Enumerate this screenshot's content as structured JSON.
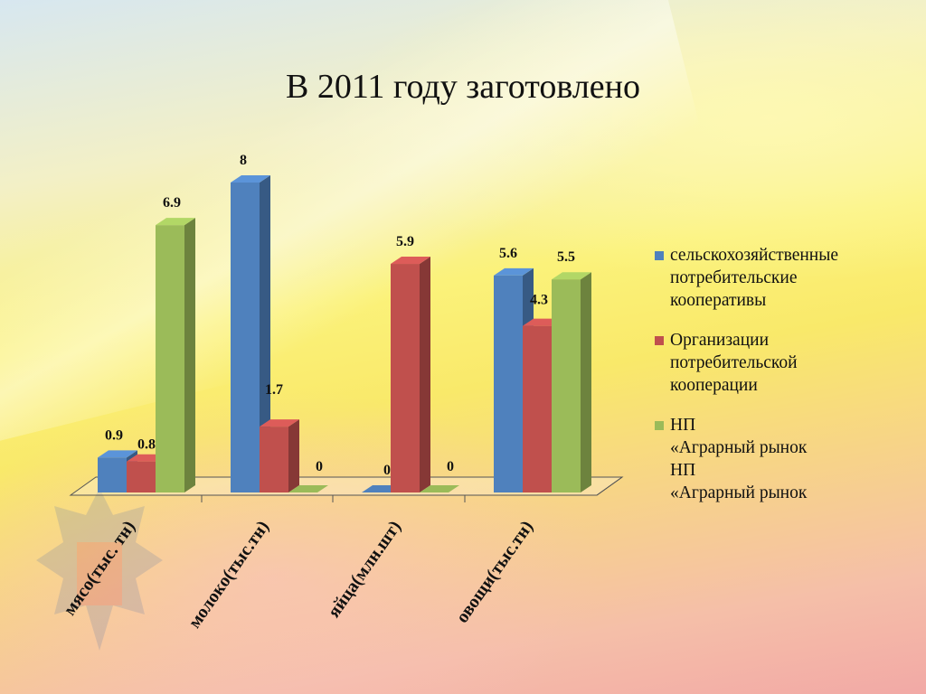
{
  "chart_data": {
    "type": "bar",
    "title": "В 2011 году заготовлено",
    "categories": [
      "мясо(тыс. тн)",
      "молоко(тыс.тн)",
      "яйца(млн.шт)",
      "овощи(тыс.тн)"
    ],
    "series": [
      {
        "name": "сельскохозяйственные потребительские кооперативы",
        "color": "#4f81bd",
        "values": [
          0.9,
          8,
          0,
          5.6
        ]
      },
      {
        "name": "Организации потребительской кооперации",
        "color": "#c0504d",
        "values": [
          0.8,
          1.7,
          5.9,
          4.3
        ]
      },
      {
        "name": "НП «Аграрный рынок НП «Аграрный рынок",
        "color": "#9bbb59",
        "values": [
          6.9,
          0,
          0,
          5.5
        ]
      }
    ],
    "data_labels": [
      [
        "0.9",
        "8",
        "0",
        "5.6"
      ],
      [
        "0.8",
        "1.7",
        "5.9",
        "4.3"
      ],
      [
        "6.9",
        "0",
        "0",
        "5.5"
      ]
    ],
    "ylim": [
      0,
      8
    ],
    "grid": false,
    "legend_position": "right",
    "three_d": true
  },
  "legend": [
    {
      "lines": [
        "сельскохозяйственные",
        "потребительские",
        "кооперативы"
      ]
    },
    {
      "lines": [
        "Организации",
        "потребительской",
        "кооперации"
      ]
    },
    {
      "lines": [
        "НП",
        "«Аграрный рынок",
        "НП",
        "«Аграрный рынок"
      ]
    }
  ]
}
